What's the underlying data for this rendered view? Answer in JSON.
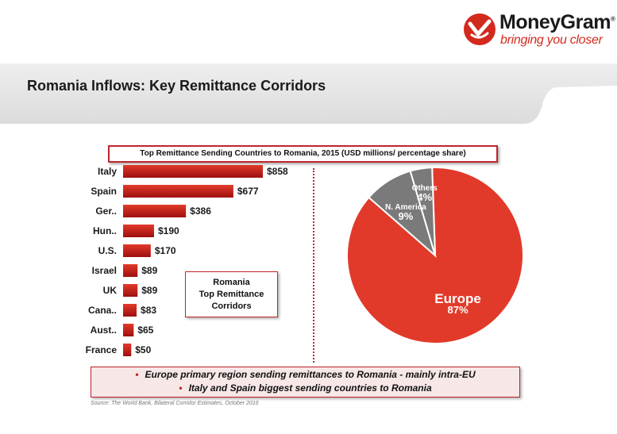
{
  "logo": {
    "name": "MoneyGram",
    "registered": "®",
    "tagline": "bringing you closer"
  },
  "page_title": "Romania Inflows: Key Remittance Corridors",
  "corridor_box": [
    "Romania",
    "Top Remittance",
    "Corridors"
  ],
  "bullets": [
    "Europe primary region sending remittances to Romania - mainly intra-EU",
    "Italy and Spain biggest sending countries to Romania"
  ],
  "bullet_marker": "•",
  "source": "Source:  The World Bank, Bilateral Corridor Estimates, October 2016",
  "colors": {
    "accent": "#d32a1e",
    "bar_dark": "#9e0f0f",
    "bar_light": "#e23a2a",
    "pie_gray": "#7a7a7a"
  },
  "chart_data": [
    {
      "type": "bar",
      "orientation": "horizontal",
      "title": "Top Remittance Sending Countries to Romania, 2015 (USD millions/ percentage share)",
      "categories": [
        "Italy",
        "Spain",
        "Ger..",
        "Hun..",
        "U.S.",
        "Israel",
        "UK",
        "Cana..",
        "Aust..",
        "France"
      ],
      "values": [
        858,
        677,
        386,
        190,
        170,
        89,
        89,
        83,
        65,
        50
      ],
      "value_labels": [
        "$858",
        "$677",
        "$386",
        "$190",
        "$170",
        "$89",
        "$89",
        "$83",
        "$65",
        "$50"
      ],
      "xlim": [
        0,
        1000
      ]
    },
    {
      "type": "pie",
      "slices": [
        {
          "label": "Europe",
          "value": 87,
          "text": "87%",
          "color": "#e23a2a"
        },
        {
          "label": "N. America",
          "value": 9,
          "text": "9%",
          "color": "#7a7a7a"
        },
        {
          "label": "Others",
          "value": 4,
          "text": "4%",
          "color": "#7a7a7a"
        }
      ]
    }
  ]
}
